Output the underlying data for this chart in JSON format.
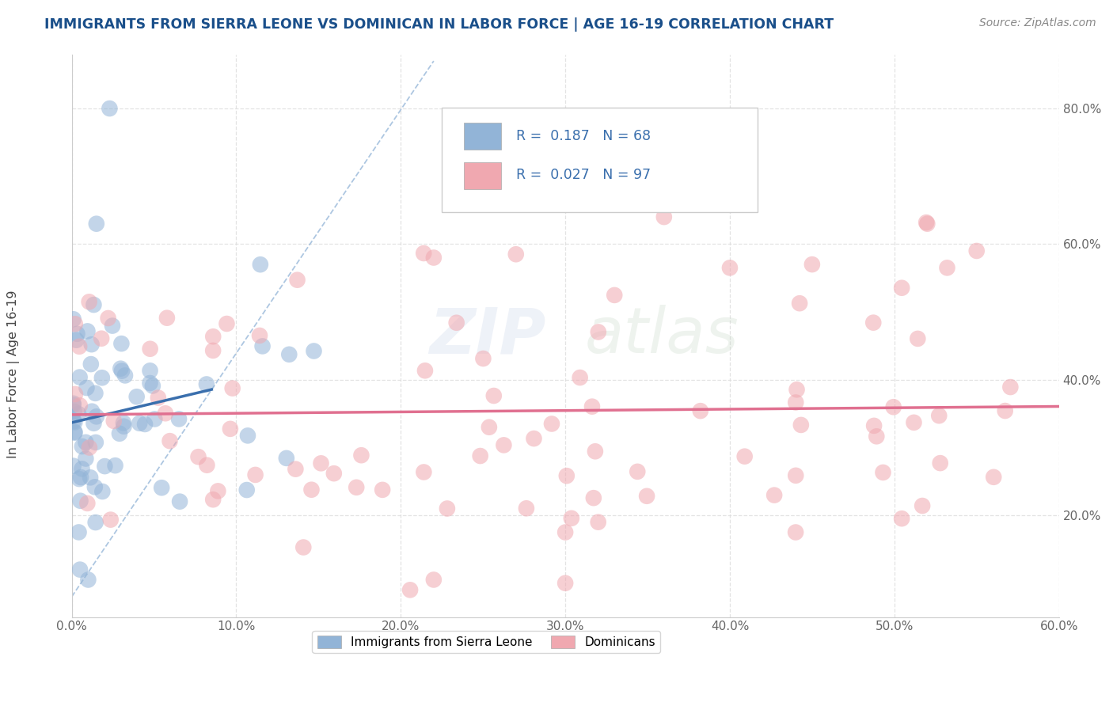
{
  "title": "IMMIGRANTS FROM SIERRA LEONE VS DOMINICAN IN LABOR FORCE | AGE 16-19 CORRELATION CHART",
  "source": "Source: ZipAtlas.com",
  "ylabel": "In Labor Force | Age 16-19",
  "xlim": [
    0.0,
    0.6
  ],
  "ylim": [
    0.05,
    0.88
  ],
  "xticks": [
    0.0,
    0.1,
    0.2,
    0.3,
    0.4,
    0.5,
    0.6
  ],
  "yticks": [
    0.2,
    0.4,
    0.6,
    0.8
  ],
  "blue_R": 0.187,
  "blue_N": 68,
  "pink_R": 0.027,
  "pink_N": 97,
  "blue_color": "#92b4d7",
  "pink_color": "#f0a8b0",
  "blue_line_color": "#3a6fad",
  "pink_line_color": "#e07090",
  "ref_line_color": "#92b4d7",
  "legend_label_blue": "Immigrants from Sierra Leone",
  "legend_label_pink": "Dominicans",
  "background_color": "#ffffff",
  "grid_color": "#dddddd",
  "title_color": "#1a4f8a",
  "watermark_zip": "ZIP",
  "watermark_atlas": "atlas",
  "seed": 99
}
